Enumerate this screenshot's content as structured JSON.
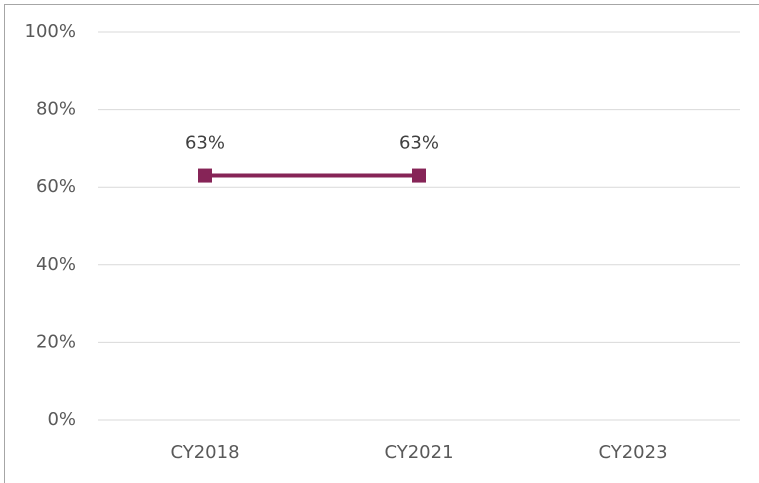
{
  "chart_data": {
    "type": "line",
    "categories": [
      "CY2018",
      "CY2021",
      "CY2023"
    ],
    "series": [
      {
        "color": "#862457",
        "values": [
          63,
          63,
          null
        ],
        "value_labels": [
          "63%",
          "63%",
          null
        ]
      }
    ],
    "ylim": [
      0,
      100
    ],
    "yticks": [
      {
        "value": 0,
        "label": "0%"
      },
      {
        "value": 20,
        "label": "20%"
      },
      {
        "value": 40,
        "label": "40%"
      },
      {
        "value": 60,
        "label": "60%"
      },
      {
        "value": 80,
        "label": "80%"
      },
      {
        "value": 100,
        "label": "100%"
      }
    ],
    "grid": true,
    "legend": false
  }
}
